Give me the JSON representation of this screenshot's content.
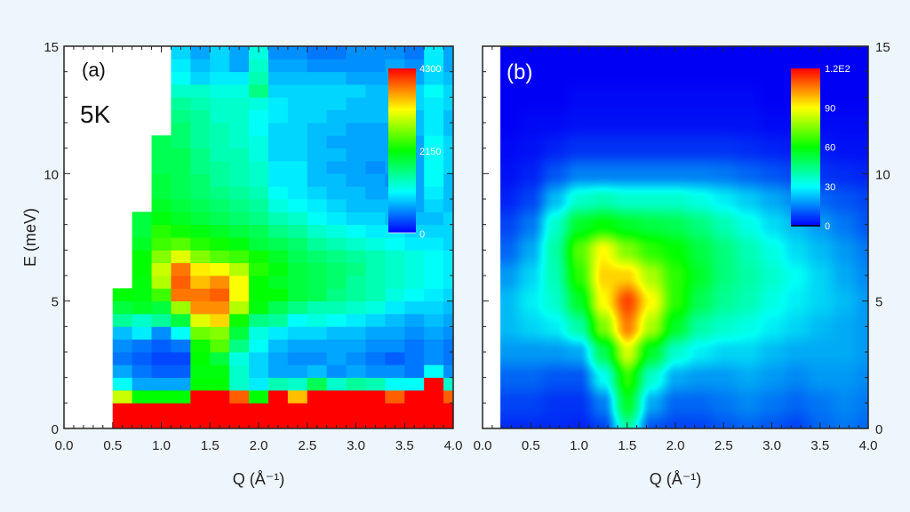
{
  "chart_data": [
    {
      "type": "heatmap",
      "panel_label": "(a)",
      "annotation": "5K",
      "xlabel": "Q (Å⁻¹)",
      "ylabel": "E (meV)",
      "xlim": [
        0,
        4.0
      ],
      "ylim": [
        0,
        15
      ],
      "x_ticks": [
        "0.0",
        "0.5",
        "1.0",
        "1.5",
        "2.0",
        "2.5",
        "3.0",
        "3.5",
        "4.0"
      ],
      "y_ticks": [
        "0",
        "5",
        "10",
        "15"
      ],
      "q_bin_start": 0.5,
      "q_bin_width": 0.2,
      "e_bin_start": 0,
      "e_bin_width": 0.5,
      "colorbar": {
        "min": 0,
        "max": 4300,
        "labels": [
          "4300",
          "2150",
          "0"
        ]
      },
      "intensity_rows_low_to_high_E": [
        [
          4300,
          4300,
          4300,
          4300,
          4300,
          4300,
          4300,
          4300,
          4300,
          4300,
          4300,
          4300,
          4300,
          4300,
          4300,
          4300,
          4300,
          4300
        ],
        [
          4300,
          4300,
          4300,
          4300,
          4300,
          4300,
          4300,
          4300,
          4300,
          4300,
          4300,
          4300,
          4300,
          4300,
          4300,
          4300,
          4300,
          4300
        ],
        [
          3000,
          2150,
          2150,
          2150,
          4300,
          4300,
          3900,
          2150,
          4300,
          3500,
          4300,
          4300,
          4300,
          4300,
          3900,
          4300,
          4300,
          3900
        ],
        [
          1100,
          700,
          700,
          700,
          2150,
          2150,
          1300,
          1000,
          1400,
          1300,
          1800,
          1300,
          1500,
          1400,
          1100,
          1100,
          4300,
          1300
        ],
        [
          700,
          500,
          400,
          400,
          2100,
          2100,
          1300,
          900,
          700,
          700,
          800,
          600,
          700,
          600,
          600,
          500,
          1100,
          600
        ],
        [
          500,
          400,
          300,
          300,
          2150,
          1900,
          1200,
          900,
          700,
          600,
          600,
          700,
          600,
          500,
          400,
          500,
          600,
          500
        ],
        [
          600,
          500,
          400,
          500,
          2200,
          2500,
          1600,
          1100,
          800,
          700,
          700,
          700,
          700,
          600,
          600,
          500,
          600,
          500
        ],
        [
          800,
          1000,
          600,
          1100,
          2600,
          2700,
          1900,
          1200,
          1000,
          900,
          900,
          800,
          800,
          700,
          700,
          600,
          700,
          600
        ],
        [
          1500,
          1300,
          1500,
          1900,
          3100,
          3400,
          2200,
          1600,
          1500,
          1100,
          1200,
          1100,
          1000,
          900,
          800,
          700,
          800,
          700
        ],
        [
          1900,
          2000,
          1900,
          2800,
          3700,
          3700,
          2900,
          2100,
          1800,
          1600,
          1400,
          1400,
          1300,
          1200,
          1000,
          900,
          900,
          800
        ],
        [
          2150,
          2100,
          2400,
          3800,
          3800,
          3900,
          3200,
          2150,
          2150,
          1900,
          1800,
          1600,
          1500,
          1400,
          1200,
          1100,
          1000,
          900
        ],
        [
          null,
          2100,
          2900,
          3900,
          3500,
          3700,
          3200,
          2150,
          2000,
          1900,
          1800,
          1700,
          1500,
          1400,
          1300,
          1200,
          1100,
          1000
        ],
        [
          null,
          2150,
          3000,
          3800,
          3300,
          3200,
          2900,
          2300,
          2100,
          1900,
          1800,
          1700,
          1600,
          1400,
          1300,
          1200,
          1100,
          1000
        ],
        [
          null,
          2150,
          2700,
          3100,
          2700,
          2500,
          2400,
          2200,
          2000,
          1800,
          1700,
          1600,
          1500,
          1400,
          1300,
          1200,
          1100,
          1000
        ],
        [
          null,
          2000,
          2400,
          2500,
          2300,
          2200,
          2100,
          1900,
          1800,
          1700,
          1500,
          1400,
          1300,
          1200,
          1100,
          1000,
          1000,
          900
        ],
        [
          null,
          1900,
          2300,
          2200,
          2100,
          2000,
          1900,
          1800,
          1600,
          1500,
          1300,
          1200,
          1100,
          1000,
          1000,
          900,
          900,
          900
        ],
        [
          null,
          1900,
          2100,
          2000,
          1900,
          1800,
          1700,
          1600,
          1400,
          1300,
          1100,
          1000,
          900,
          900,
          800,
          800,
          800,
          900
        ],
        [
          null,
          null,
          2000,
          1900,
          1800,
          1700,
          1600,
          1500,
          1200,
          1100,
          1000,
          900,
          800,
          800,
          800,
          700,
          900,
          800
        ],
        [
          null,
          null,
          1900,
          1800,
          1700,
          1600,
          1500,
          1400,
          1100,
          1000,
          900,
          800,
          800,
          700,
          700,
          700,
          1000,
          800
        ],
        [
          null,
          null,
          1900,
          1800,
          1700,
          1500,
          1400,
          1300,
          1000,
          1000,
          800,
          800,
          700,
          700,
          600,
          700,
          1100,
          800
        ],
        [
          null,
          null,
          1800,
          1800,
          1600,
          1500,
          1400,
          1300,
          1000,
          1000,
          800,
          700,
          700,
          600,
          700,
          700,
          1100,
          900
        ],
        [
          null,
          null,
          1800,
          1800,
          1600,
          1400,
          1400,
          1200,
          900,
          900,
          800,
          800,
          700,
          700,
          700,
          700,
          1100,
          900
        ],
        [
          null,
          null,
          1800,
          1700,
          1500,
          1400,
          1300,
          1200,
          900,
          900,
          800,
          700,
          700,
          700,
          700,
          700,
          1100,
          900
        ],
        [
          null,
          null,
          null,
          1700,
          1500,
          1400,
          1300,
          1100,
          900,
          900,
          800,
          800,
          700,
          700,
          700,
          800,
          1000,
          800
        ],
        [
          null,
          null,
          null,
          1600,
          1500,
          1300,
          1300,
          1100,
          1000,
          900,
          900,
          800,
          800,
          800,
          800,
          800,
          1000,
          800
        ],
        [
          null,
          null,
          null,
          1500,
          1400,
          1300,
          1300,
          1200,
          1000,
          900,
          900,
          900,
          800,
          800,
          800,
          900,
          1000,
          900
        ],
        [
          null,
          null,
          null,
          1300,
          1300,
          1200,
          1200,
          1600,
          900,
          900,
          900,
          900,
          900,
          800,
          800,
          900,
          1100,
          900
        ],
        [
          null,
          null,
          null,
          1100,
          900,
          1000,
          1000,
          1400,
          800,
          800,
          800,
          800,
          700,
          700,
          700,
          700,
          900,
          800
        ],
        [
          null,
          null,
          null,
          1000,
          800,
          900,
          700,
          1300,
          700,
          700,
          600,
          600,
          600,
          600,
          700,
          600,
          1000,
          700
        ],
        [
          null,
          null,
          null,
          900,
          700,
          900,
          700,
          1200,
          600,
          600,
          500,
          500,
          600,
          600,
          600,
          500,
          1000,
          700
        ]
      ]
    },
    {
      "type": "heatmap",
      "panel_label": "(b)",
      "xlabel": "Q (Å⁻¹)",
      "xlim": [
        0,
        4.0
      ],
      "ylim": [
        0,
        15
      ],
      "x_ticks": [
        "0.0",
        "0.5",
        "1.0",
        "1.5",
        "2.0",
        "2.5",
        "3.0",
        "3.5",
        "4.0"
      ],
      "y_ticks": [
        "0",
        "5",
        "10",
        "15"
      ],
      "data_q_min": 0.18,
      "q_grid": [
        0.25,
        0.5,
        0.75,
        1.0,
        1.25,
        1.5,
        1.75,
        2.0,
        2.25,
        2.5,
        2.75,
        3.0,
        3.25,
        3.5,
        3.75,
        4.0
      ],
      "e_grid": [
        0,
        1,
        2,
        3,
        4,
        5,
        6,
        7,
        8,
        9,
        10,
        11,
        12,
        13,
        14,
        15
      ],
      "colorbar": {
        "min": 0,
        "max": 120,
        "labels": [
          "1.2E2",
          "90",
          "60",
          "30",
          "0"
        ]
      },
      "intensity_rows_low_to_high_E": [
        [
          5,
          5,
          5,
          4,
          8,
          40,
          10,
          8,
          8,
          10,
          12,
          10,
          8,
          12,
          14,
          12
        ],
        [
          8,
          8,
          6,
          6,
          15,
          55,
          20,
          12,
          12,
          14,
          16,
          14,
          12,
          14,
          16,
          14
        ],
        [
          12,
          12,
          10,
          10,
          30,
          65,
          35,
          20,
          18,
          18,
          20,
          18,
          16,
          18,
          18,
          16
        ],
        [
          18,
          18,
          18,
          20,
          50,
          85,
          55,
          35,
          28,
          25,
          25,
          22,
          20,
          20,
          20,
          18
        ],
        [
          22,
          25,
          28,
          40,
          75,
          105,
          80,
          55,
          40,
          35,
          32,
          28,
          25,
          22,
          20,
          18
        ],
        [
          22,
          28,
          35,
          55,
          90,
          112,
          90,
          65,
          50,
          42,
          38,
          32,
          28,
          25,
          22,
          18
        ],
        [
          18,
          25,
          38,
          65,
          95,
          95,
          80,
          65,
          55,
          45,
          40,
          35,
          30,
          25,
          20,
          16
        ],
        [
          12,
          20,
          40,
          70,
          90,
          75,
          65,
          60,
          52,
          45,
          38,
          32,
          26,
          22,
          18,
          14
        ],
        [
          8,
          14,
          35,
          55,
          60,
          55,
          52,
          50,
          45,
          38,
          32,
          26,
          22,
          18,
          14,
          10
        ],
        [
          4,
          8,
          22,
          35,
          38,
          35,
          35,
          35,
          32,
          28,
          24,
          20,
          16,
          12,
          10,
          8
        ],
        [
          2,
          4,
          10,
          15,
          15,
          15,
          15,
          15,
          15,
          14,
          12,
          10,
          8,
          6,
          5,
          4
        ],
        [
          1,
          2,
          4,
          6,
          6,
          6,
          6,
          6,
          6,
          6,
          5,
          4,
          3,
          3,
          2,
          2
        ],
        [
          0,
          1,
          1,
          2,
          2,
          2,
          2,
          2,
          2,
          2,
          2,
          1,
          1,
          1,
          1,
          1
        ],
        [
          0,
          0,
          0,
          1,
          1,
          1,
          1,
          1,
          1,
          1,
          1,
          0,
          0,
          0,
          0,
          0
        ],
        [
          0,
          0,
          0,
          0,
          0,
          0,
          0,
          0,
          0,
          0,
          0,
          0,
          0,
          0,
          0,
          0
        ],
        [
          0,
          0,
          0,
          0,
          0,
          0,
          0,
          0,
          0,
          0,
          0,
          0,
          0,
          0,
          0,
          0
        ]
      ]
    }
  ]
}
